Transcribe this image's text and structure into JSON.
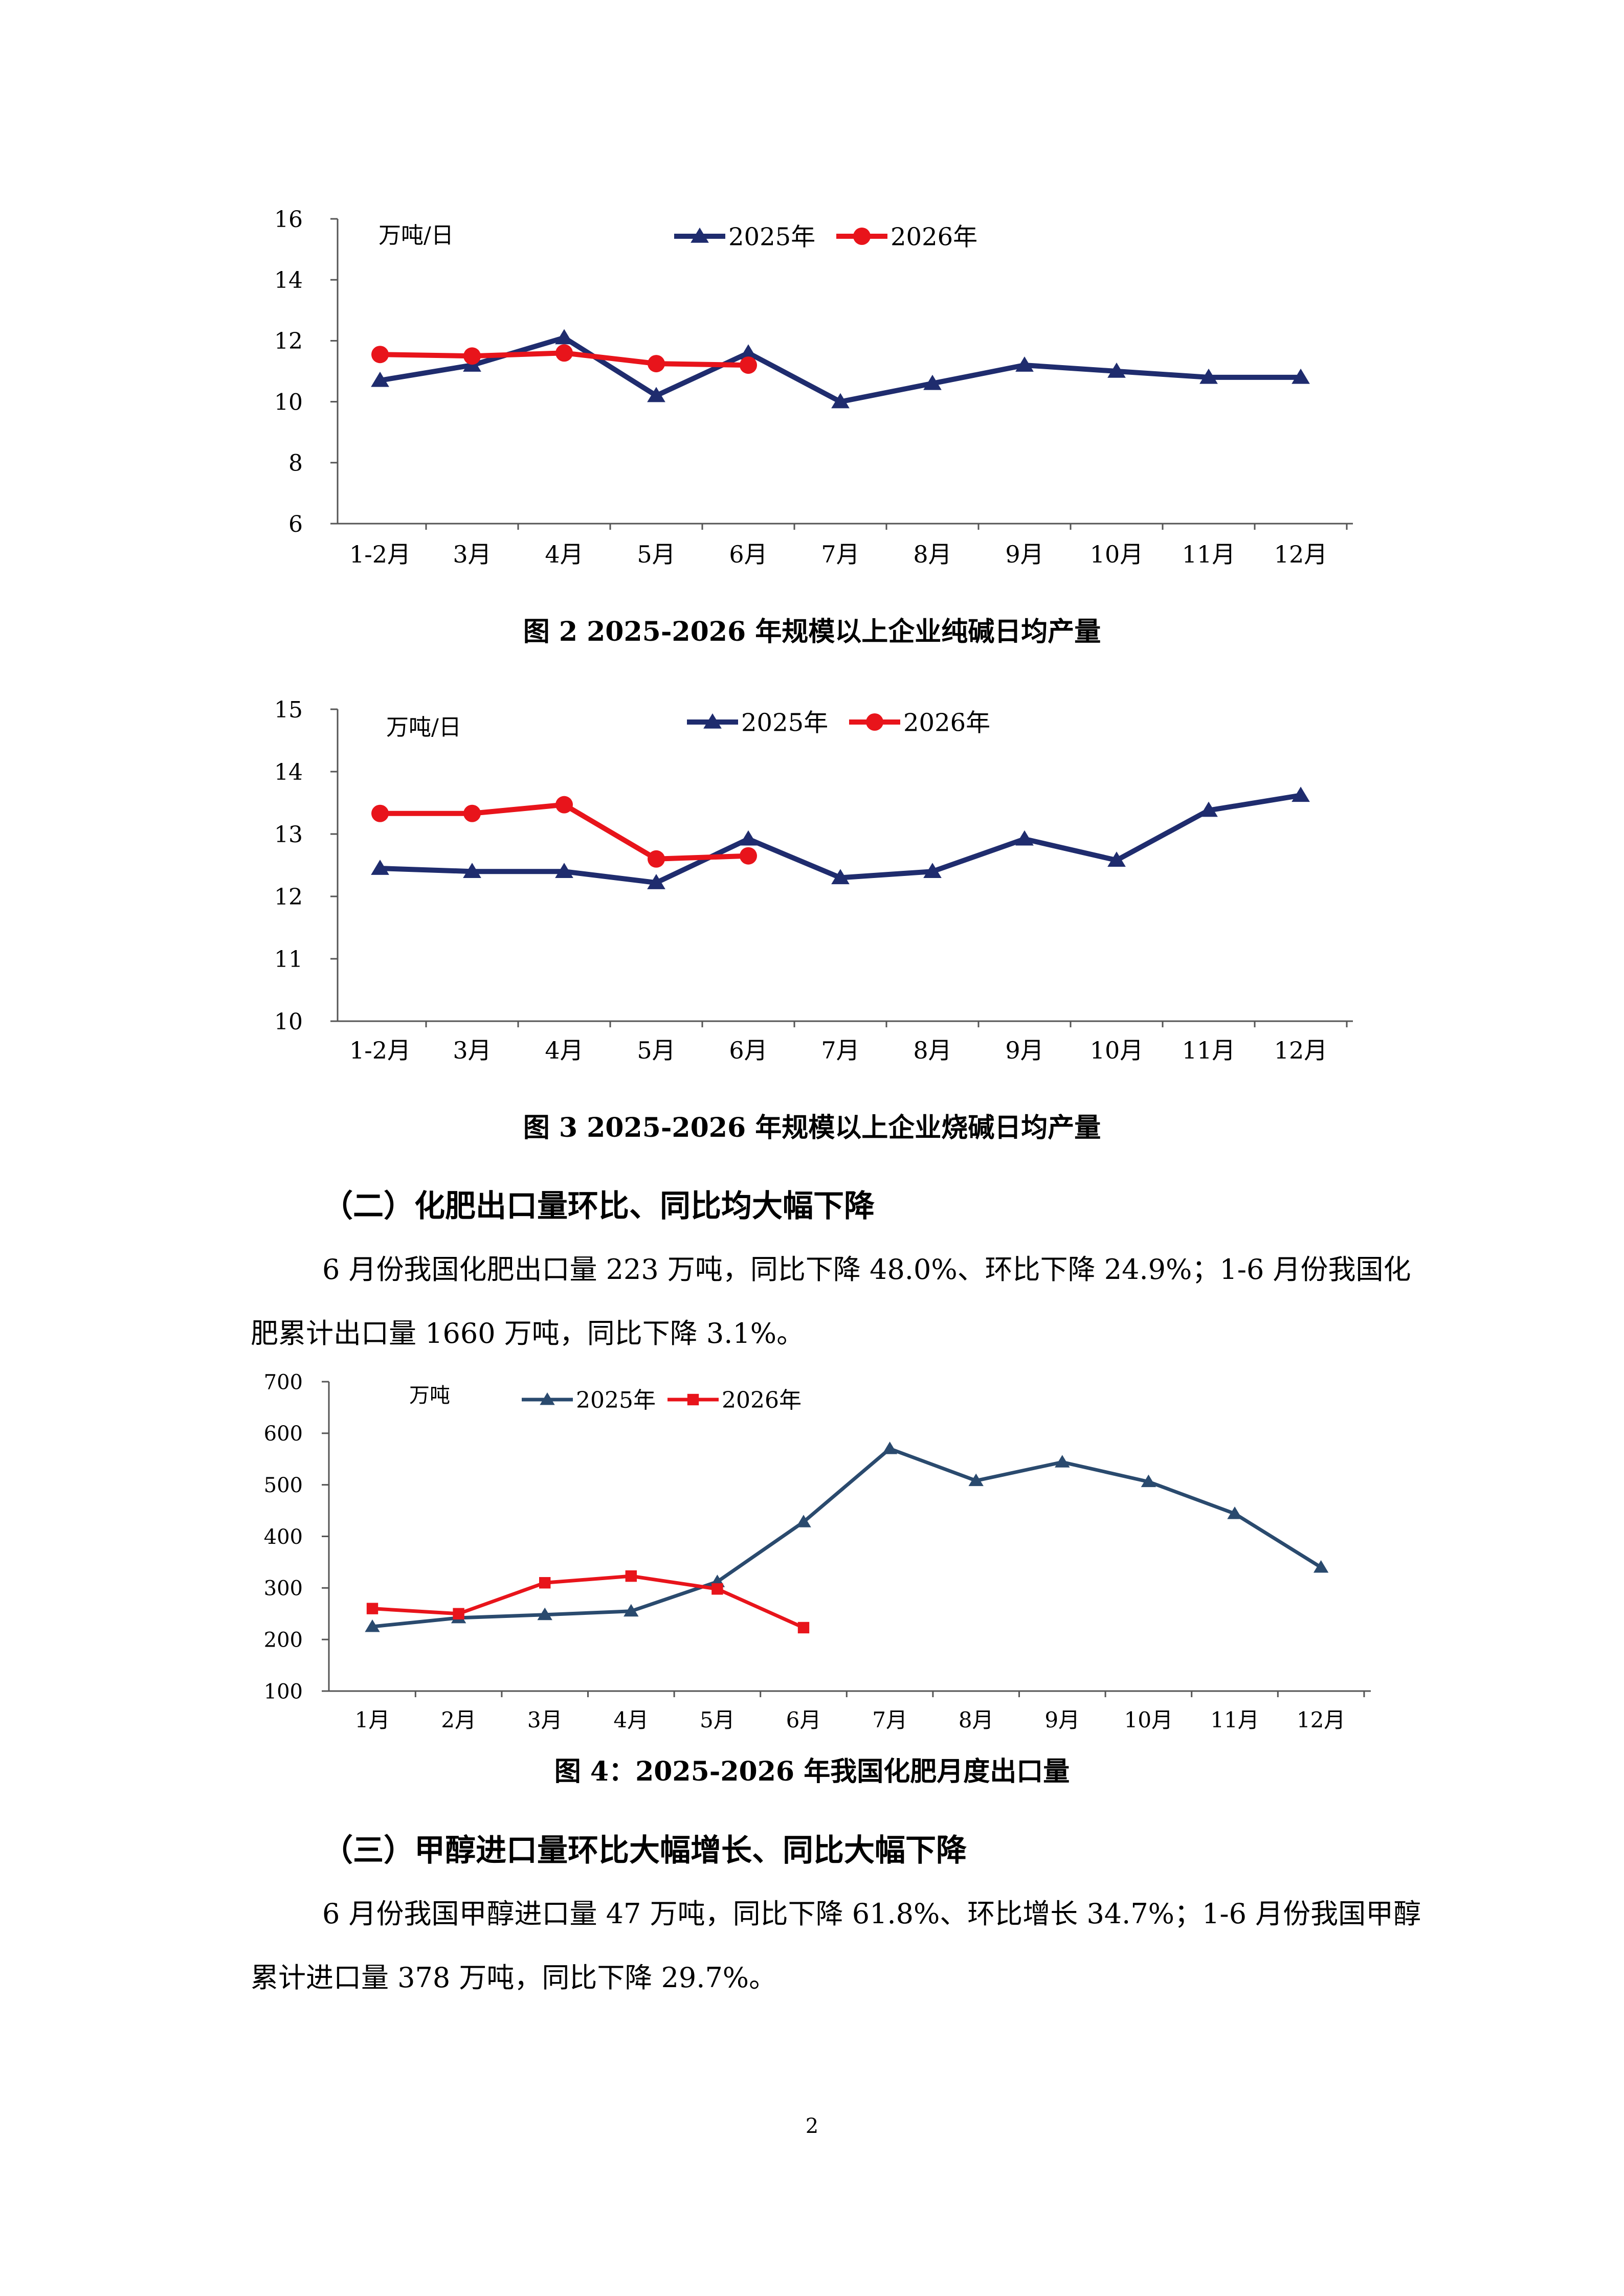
{
  "charts": [
    {
      "id": "fig2",
      "caption": "图 2   2025-2026 年规模以上企业纯碱日均产量",
      "chart_data": {
        "type": "line",
        "unit_label": "万吨/日",
        "categories": [
          "1-2月",
          "3月",
          "4月",
          "5月",
          "6月",
          "7月",
          "8月",
          "9月",
          "10月",
          "11月",
          "12月"
        ],
        "ylim": [
          6,
          16
        ],
        "yticks": [
          6,
          8,
          10,
          12,
          14,
          16
        ],
        "legend_position": "top",
        "series": [
          {
            "name": "2025年",
            "color": "#1f2c6e",
            "marker": "triangle",
            "values": [
              10.7,
              11.2,
              12.1,
              10.2,
              11.6,
              10.0,
              10.6,
              11.2,
              11.0,
              10.8,
              10.8
            ]
          },
          {
            "name": "2026年",
            "color": "#e8141b",
            "marker": "circle",
            "values": [
              11.55,
              11.5,
              11.6,
              11.25,
              11.2,
              null,
              null,
              null,
              null,
              null,
              null
            ]
          }
        ]
      }
    },
    {
      "id": "fig3",
      "caption": "图 3   2025-2026 年规模以上企业烧碱日均产量",
      "chart_data": {
        "type": "line",
        "unit_label": "万吨/日",
        "categories": [
          "1-2月",
          "3月",
          "4月",
          "5月",
          "6月",
          "7月",
          "8月",
          "9月",
          "10月",
          "11月",
          "12月"
        ],
        "ylim": [
          10,
          15
        ],
        "yticks": [
          10,
          11,
          12,
          13,
          14,
          15
        ],
        "legend_position": "top",
        "series": [
          {
            "name": "2025年",
            "color": "#1f2c6e",
            "marker": "triangle",
            "values": [
              12.45,
              12.4,
              12.4,
              12.22,
              12.92,
              12.3,
              12.4,
              12.92,
              12.58,
              13.38,
              13.62
            ]
          },
          {
            "name": "2026年",
            "color": "#e8141b",
            "marker": "circle",
            "values": [
              13.33,
              13.33,
              13.47,
              12.6,
              12.65,
              null,
              null,
              null,
              null,
              null,
              null
            ]
          }
        ]
      }
    },
    {
      "id": "fig4",
      "caption": "图 4：2025-2026 年我国化肥月度出口量",
      "chart_data": {
        "type": "line",
        "unit_label": "万吨",
        "categories": [
          "1月",
          "2月",
          "3月",
          "4月",
          "5月",
          "6月",
          "7月",
          "8月",
          "9月",
          "10月",
          "11月",
          "12月"
        ],
        "ylim": [
          100,
          700
        ],
        "yticks": [
          100,
          200,
          300,
          400,
          500,
          600,
          700
        ],
        "legend_position": "top",
        "series": [
          {
            "name": "2025年",
            "color": "#2a4a6e",
            "marker": "triangle",
            "values": [
              225,
              242,
              248,
              255,
              312,
              428,
              570,
              508,
              544,
              506,
              444,
              340
            ]
          },
          {
            "name": "2026年",
            "color": "#e8141b",
            "marker": "square",
            "values": [
              260,
              250,
              310,
              323,
              298,
              223,
              null,
              null,
              null,
              null,
              null,
              null
            ]
          }
        ]
      }
    }
  ],
  "sections": [
    {
      "heading": "（二）化肥出口量环比、同比均大幅下降",
      "paragraph": "6 月份我国化肥出口量 223 万吨，同比下降 48.0%、环比下降 24.9%；1-6 月份我国化肥累计出口量 1660 万吨，同比下降 3.1%。"
    },
    {
      "heading": "（三）甲醇进口量环比大幅增长、同比大幅下降",
      "paragraph": "6 月份我国甲醇进口量 47 万吨，同比下降 61.8%、环比增长 34.7%；1-6 月份我国甲醇累计进口量 378 万吨，同比下降 29.7%。"
    }
  ],
  "page_number": "2"
}
